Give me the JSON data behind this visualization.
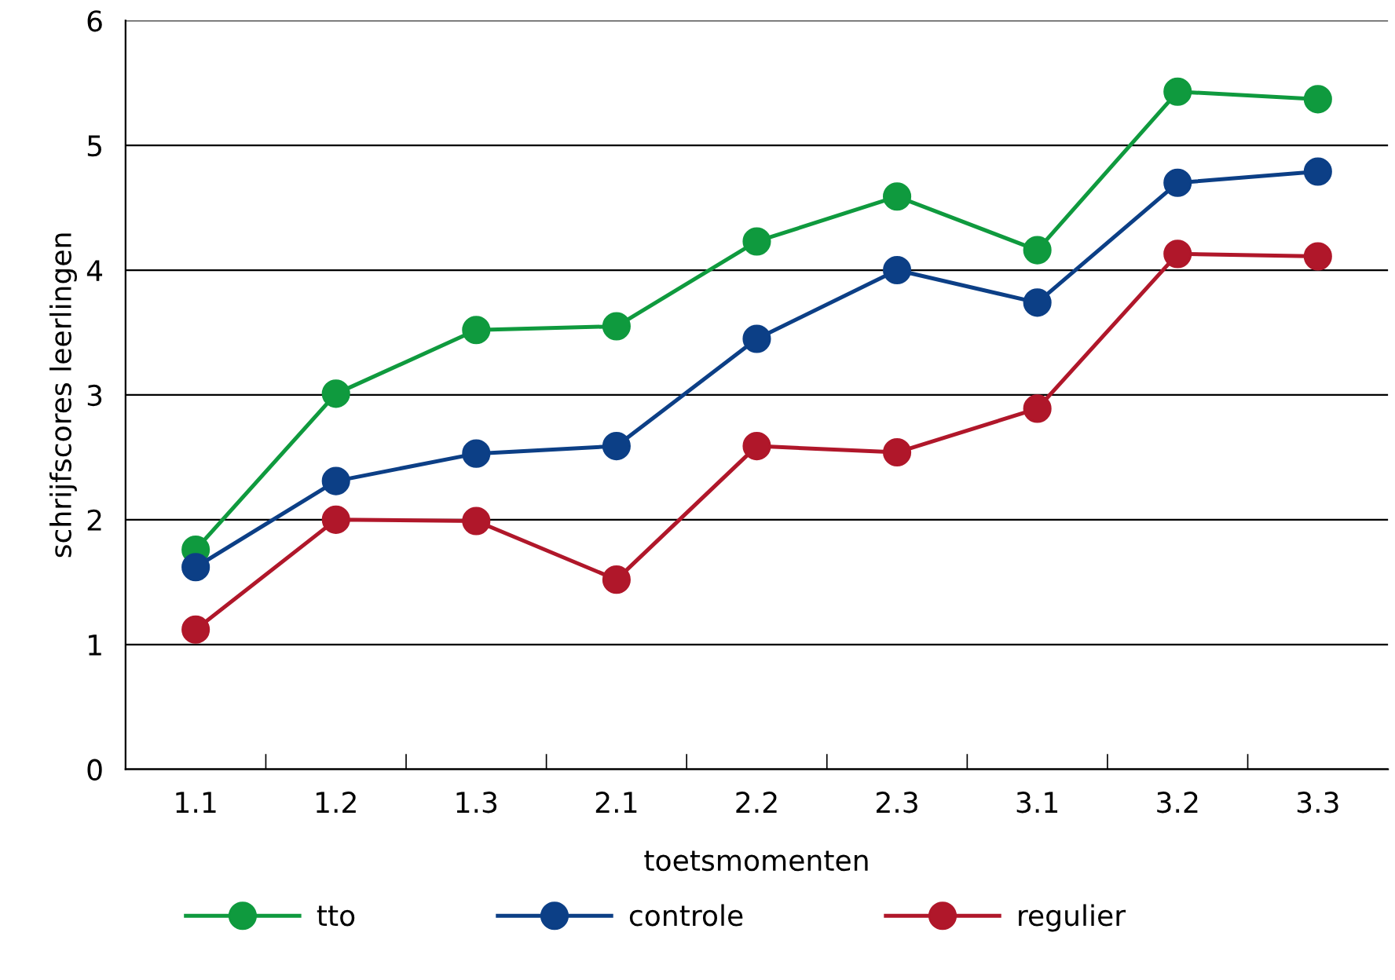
{
  "chart_data": {
    "type": "line",
    "xlabel": "toetsmomenten",
    "ylabel": "schrijfscores leerlingen",
    "categories": [
      "1.1",
      "1.2",
      "1.3",
      "2.1",
      "2.2",
      "2.3",
      "3.1",
      "3.2",
      "3.3"
    ],
    "series": [
      {
        "name": "tto",
        "color": "#0f9a3e",
        "values": [
          1.76,
          3.01,
          3.52,
          3.55,
          4.23,
          4.59,
          4.16,
          5.43,
          5.37
        ]
      },
      {
        "name": "controle",
        "color": "#0c3f86",
        "values": [
          1.62,
          2.31,
          2.53,
          2.59,
          3.45,
          4.0,
          3.74,
          4.7,
          4.79
        ]
      },
      {
        "name": "regulier",
        "color": "#b0172a",
        "values": [
          1.12,
          2.0,
          1.99,
          1.52,
          2.59,
          2.54,
          2.89,
          4.13,
          4.11
        ]
      }
    ],
    "ylim": [
      0,
      6
    ],
    "yticks": [
      0,
      1,
      2,
      3,
      4,
      5,
      6
    ],
    "grid": "y",
    "legend": "bottom",
    "marker": "circle",
    "line_style": "solid"
  }
}
